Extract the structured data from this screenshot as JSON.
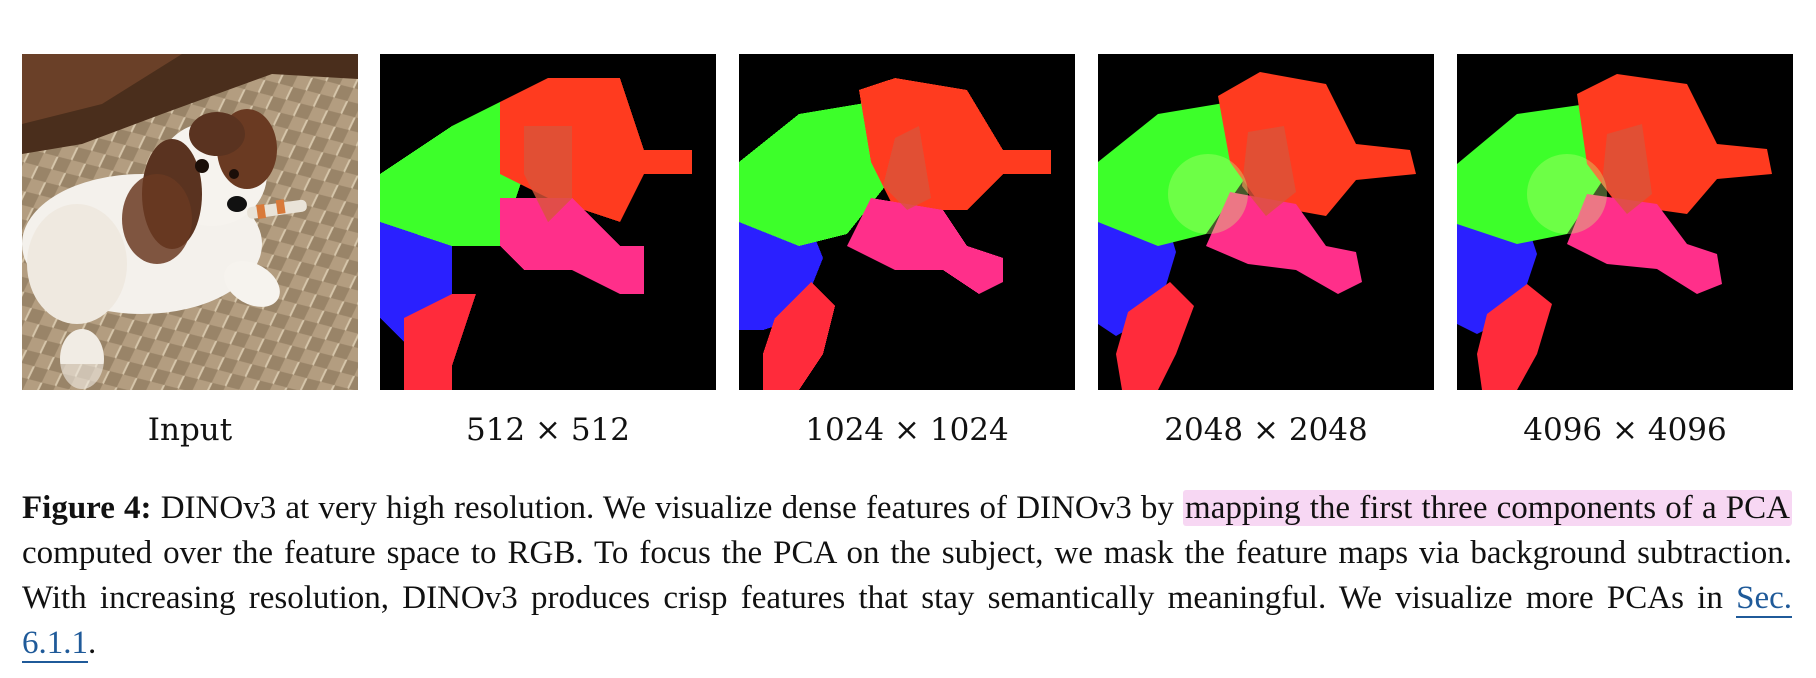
{
  "figure": {
    "panels": [
      {
        "id": "input",
        "label": "Input",
        "kind": "photo"
      },
      {
        "id": "r512",
        "label": "512 × 512",
        "kind": "pca",
        "pixel": 24
      },
      {
        "id": "r1024",
        "label": "1024 × 1024",
        "kind": "pca",
        "pixel": 12
      },
      {
        "id": "r2048",
        "label": "2048 × 2048",
        "kind": "pca",
        "pixel": 6
      },
      {
        "id": "r4096",
        "label": "4096 × 4096",
        "kind": "pca",
        "pixel": 0
      }
    ],
    "colors": {
      "background": "#000000",
      "head": "#ff3b1f",
      "body_green": "#3dff2a",
      "body_blue": "#2a20ff",
      "paw_pink": "#ff2f8a",
      "limb_red": "#ff2b3b",
      "floor": "#b39d80",
      "dog_white": "#f4f1ec",
      "dog_brown": "#5a3320",
      "highlight": "#f7d7f3",
      "link": "#1f5a99"
    }
  },
  "caption": {
    "label": "Figure 4:",
    "text_1": " DINOv3 at very high resolution. We visualize dense features of DINOv3 by ",
    "highlight": "mapping the first three components of a PCA",
    "text_2": " computed over the feature space to RGB. To focus the PCA on the subject, we mask the feature maps via background subtraction. With increasing resolution, DINOv3 produces crisp features that stay semantically meaningful. We visualize more PCAs in ",
    "ref": "Sec. 6.1.1",
    "text_3": "."
  }
}
